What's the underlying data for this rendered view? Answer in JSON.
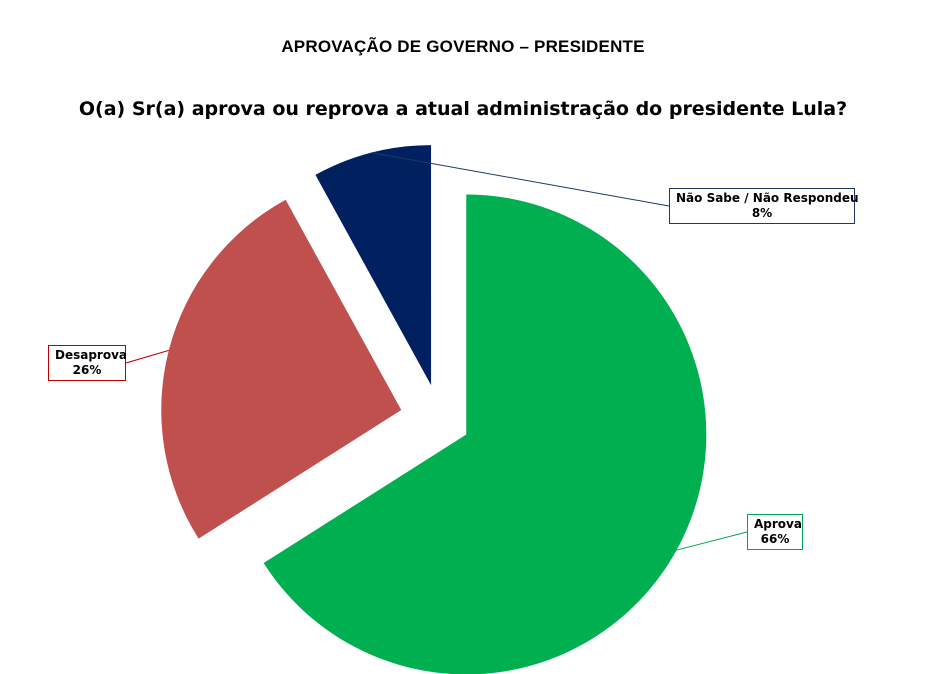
{
  "header": {
    "title": "APROVAÇÃO DE GOVERNO – PRESIDENTE",
    "question": "O(a) Sr(a) aprova ou reprova a atual administração do presidente Lula?"
  },
  "chart_data": {
    "type": "pie",
    "title": "O(a) Sr(a) aprova ou reprova a atual administração do presidente Lula?",
    "categories": [
      "Aprova",
      "Desaprova",
      "Não Sabe / Não Respondeu"
    ],
    "values": [
      66,
      26,
      8
    ],
    "value_labels": [
      "66%",
      "26%",
      "8%"
    ],
    "colors": [
      "#00b050",
      "#c0504d",
      "#002060"
    ],
    "exploded": true,
    "legend": "none"
  }
}
